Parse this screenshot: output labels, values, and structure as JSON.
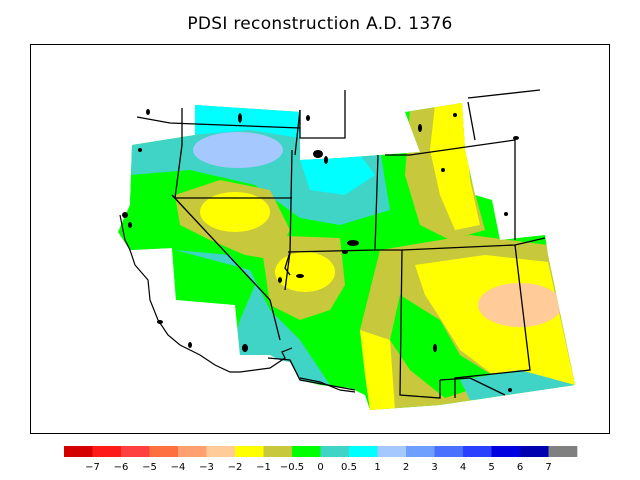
{
  "title": "PDSI reconstruction A.D. 1376",
  "colors": {
    "c_bluegrey": "#a5c8ff",
    "c_cyan": "#00ffff",
    "c_teal": "#3fd4c6",
    "c_green": "#00ff00",
    "c_olive": "#c8c83c",
    "c_yellow": "#ffff00",
    "c_peach": "#ffcc99"
  },
  "colorbar": {
    "swatches": [
      "#d40000",
      "#ff1a1a",
      "#ff4040",
      "#ff7040",
      "#ffa070",
      "#ffcc99",
      "#ffff00",
      "#c8c83c",
      "#00ff00",
      "#3fd4c6",
      "#00ffff",
      "#a5c8ff",
      "#6e9fff",
      "#4a70ff",
      "#2a40ff",
      "#0000e0",
      "#0000b0",
      "#808080"
    ],
    "labels": [
      "−7",
      "−6",
      "−5",
      "−4",
      "−3",
      "−2",
      "−1",
      "−0.5",
      "0",
      "0.5",
      "1",
      "2",
      "3",
      "4",
      "5",
      "6",
      "7"
    ]
  }
}
